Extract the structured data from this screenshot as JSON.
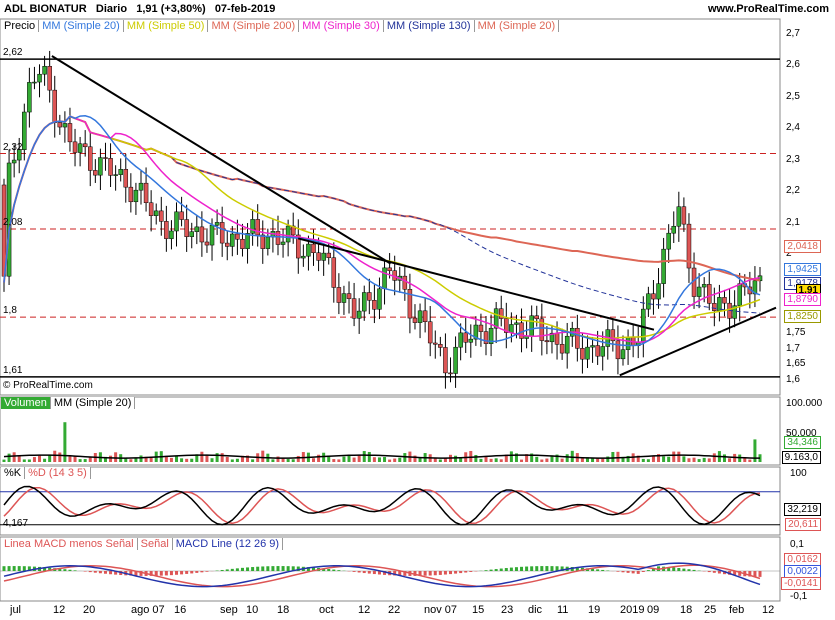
{
  "header": {
    "instrument": "ADL BIONATUR",
    "period": "Diario",
    "price": "1,91 (+3,80%)",
    "date": "07-feb-2019",
    "site": "www.ProRealTime.com",
    "watermark": "© ProRealTime.com"
  },
  "colors": {
    "up": "#33aa33",
    "down": "#dd5555",
    "mm20": "#3377dd",
    "mm50": "#cccc00",
    "mm200": "#dd6655",
    "mm30": "#ee22cc",
    "mm130": "#223399"
  },
  "price_legend": [
    "Precio",
    "MM (Simple 20)",
    "MM (Simple 50)",
    "MM (Simple 200)",
    "MM (Simple 30)",
    "MM (Simple 130)",
    "MM (Simple 20)"
  ],
  "price_axis": [
    "2,7",
    "2,6",
    "2,5",
    "2,4",
    "2,3",
    "2,2",
    "2,1",
    "2",
    "1,9",
    "1,8",
    "1,75",
    "1,7",
    "1,65",
    "1,6"
  ],
  "h_levels": [
    {
      "label": "2,62",
      "value": 2.62,
      "style": "solid"
    },
    {
      "label": "2,32",
      "value": 2.32,
      "style": "dash"
    },
    {
      "label": "2,08",
      "value": 2.08,
      "style": "dash"
    },
    {
      "label": "1,8",
      "value": 1.8,
      "style": "dash"
    },
    {
      "label": "1,61",
      "value": 1.61,
      "style": "solid"
    }
  ],
  "price_tags": [
    {
      "label": "2,0418",
      "color": "#dd6655"
    },
    {
      "label": "1,9425",
      "color": "#3377dd"
    },
    {
      "label": "1,9178",
      "color": "#223399"
    },
    {
      "label": "1,91",
      "color": "#000000",
      "bg": "#ffdd00"
    },
    {
      "label": "1,8790",
      "color": "#ee22cc"
    },
    {
      "label": "1,8250",
      "color": "#999900"
    }
  ],
  "volume_legend": [
    "Volumen",
    "MM (Simple 20)"
  ],
  "volume_axis": [
    "100.000",
    "50.000"
  ],
  "volume_tags": [
    {
      "label": "34,346",
      "color": "#33aa33"
    },
    {
      "label": "9.163,0",
      "color": "#000000"
    }
  ],
  "stoch_legend": [
    "%K",
    "%D (14 3 5)"
  ],
  "stoch_axis": [
    "100",
    "0"
  ],
  "stoch_left": "4,167",
  "stoch_tags": [
    {
      "label": "32,219",
      "color": "#000000"
    },
    {
      "label": "20,611",
      "color": "#dd5555"
    }
  ],
  "macd_legend": [
    "Linea MACD menos Señal",
    "Señal",
    "MACD Line (12 26 9)"
  ],
  "macd_axis": [
    "0,1",
    "0",
    "-0,1"
  ],
  "macd_tags": [
    {
      "label": "0,0162",
      "color": "#dd5555"
    },
    {
      "label": "0,0022",
      "color": "#3355dd"
    },
    {
      "label": "-0,0141",
      "color": "#dd5555"
    }
  ],
  "x_axis": [
    "jul",
    "12",
    "20",
    "ago 07",
    "16",
    "sep",
    "10",
    "18",
    "oct",
    "12",
    "22",
    "nov 07",
    "15",
    "23",
    "dic",
    "11",
    "19",
    "2019",
    "09",
    "18",
    "25",
    "feb",
    "12"
  ],
  "chart_data": {
    "type": "candlestick",
    "title": "ADL BIONATUR Diario",
    "x_range": [
      "2018-07-01",
      "2019-02-07"
    ],
    "ylim": [
      1.58,
      2.72
    ],
    "close_samples": [
      {
        "date": "2018-07-02",
        "close": 2.22
      },
      {
        "date": "2018-07-09",
        "close": 2.55
      },
      {
        "date": "2018-07-12",
        "close": 2.58
      },
      {
        "date": "2018-07-20",
        "close": 2.35
      },
      {
        "date": "2018-08-07",
        "close": 2.22
      },
      {
        "date": "2018-08-16",
        "close": 2.1
      },
      {
        "date": "2018-09-03",
        "close": 2.05
      },
      {
        "date": "2018-09-18",
        "close": 2.06
      },
      {
        "date": "2018-10-01",
        "close": 2.0
      },
      {
        "date": "2018-10-12",
        "close": 1.8
      },
      {
        "date": "2018-10-22",
        "close": 1.95
      },
      {
        "date": "2018-11-07",
        "close": 1.65
      },
      {
        "date": "2018-11-15",
        "close": 1.75
      },
      {
        "date": "2018-11-23",
        "close": 1.78
      },
      {
        "date": "2018-12-03",
        "close": 1.76
      },
      {
        "date": "2018-12-11",
        "close": 1.72
      },
      {
        "date": "2018-12-19",
        "close": 1.7
      },
      {
        "date": "2019-01-02",
        "close": 1.72
      },
      {
        "date": "2019-01-09",
        "close": 1.97
      },
      {
        "date": "2019-01-14",
        "close": 2.15
      },
      {
        "date": "2019-01-18",
        "close": 1.93
      },
      {
        "date": "2019-01-25",
        "close": 1.82
      },
      {
        "date": "2019-02-07",
        "close": 1.91
      }
    ],
    "series": [
      {
        "name": "MM (Simple 20)",
        "last": 1.9425
      },
      {
        "name": "MM (Simple 50)",
        "last": 1.825
      },
      {
        "name": "MM (Simple 200)",
        "last": 2.0418
      },
      {
        "name": "MM (Simple 30)",
        "last": 1.879
      },
      {
        "name": "MM (Simple 130)",
        "last": 1.9178
      }
    ],
    "volume": {
      "ylim": [
        0,
        100000
      ],
      "mm20_last": 9163.0,
      "last": 34346
    },
    "stochastic": {
      "ylim": [
        0,
        100
      ],
      "k_last": 32.219,
      "d_last": 20.611
    },
    "macd": {
      "ylim": [
        -0.1,
        0.1
      ],
      "hist_last": -0.0141,
      "signal_last": 0.0162,
      "macd_last": 0.0022
    }
  }
}
